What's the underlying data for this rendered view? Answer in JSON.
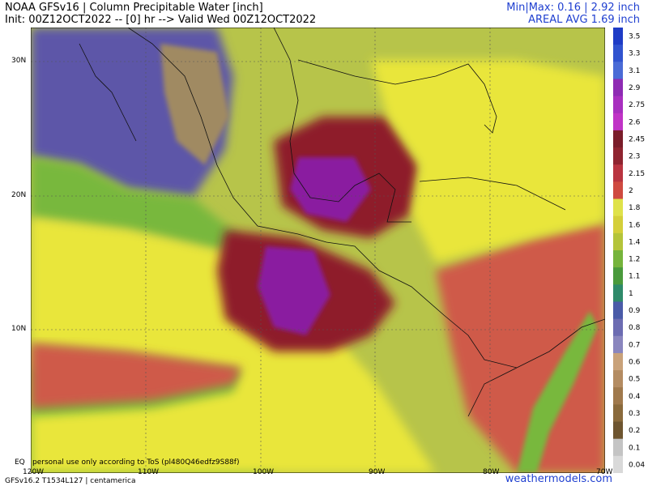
{
  "header": {
    "title": "NOAA GFSv16 | Column Precipitable Water [inch]",
    "init": "Init: 00Z12OCT2022 -- [0] hr --> Valid Wed 00Z12OCT2022",
    "minmax": "Min|Max: 0.16 | 2.92 inch",
    "areal_avg": "AREAL AVG 1.69 inch"
  },
  "map": {
    "lat_labels": [
      "30N",
      "20N",
      "10N",
      "EQ"
    ],
    "lon_labels": [
      "120W",
      "110W",
      "100W",
      "90W",
      "80W",
      "70W"
    ],
    "colors": {
      "very_high": "#8a1ea0",
      "high": "#8e1a2c",
      "mid_high": "#cf5a4a",
      "mid": "#e9e63a",
      "mid_low": "#78b83c",
      "low": "#5d57a8",
      "very_low": "#a08a62",
      "ocean_base": "#b7c44a"
    }
  },
  "colorbar": {
    "levels": [
      "3.5",
      "3.3",
      "3.1",
      "2.9",
      "2.75",
      "2.6",
      "2.45",
      "2.3",
      "2.15",
      "2",
      "1.8",
      "1.6",
      "1.4",
      "1.2",
      "1.1",
      "1",
      "0.9",
      "0.8",
      "0.7",
      "0.6",
      "0.5",
      "0.4",
      "0.3",
      "0.2",
      "0.1",
      "0.04"
    ],
    "colors": [
      "#1f3cc6",
      "#3153cf",
      "#4a6bd6",
      "#8e2bb3",
      "#a82fbf",
      "#c033c6",
      "#7a1d2a",
      "#8f2430",
      "#b93440",
      "#cf4a40",
      "#dfe24a",
      "#d4cf3a",
      "#b4c43a",
      "#76b43c",
      "#4a9a3c",
      "#2f8a6a",
      "#4a5ba8",
      "#6c6cb2",
      "#8a86be",
      "#c9a27a",
      "#b48c62",
      "#a0794c",
      "#8a6a3c",
      "#6e5530",
      "#c4c4c4",
      "#d9d9d9"
    ]
  },
  "footer": {
    "disclaimer": "personal use only according to ToS (pl480Q46edfz9S88f)",
    "model_line": "GFSv16.2 T1534L127 | centamerica",
    "brand": "weathermodels.com"
  }
}
